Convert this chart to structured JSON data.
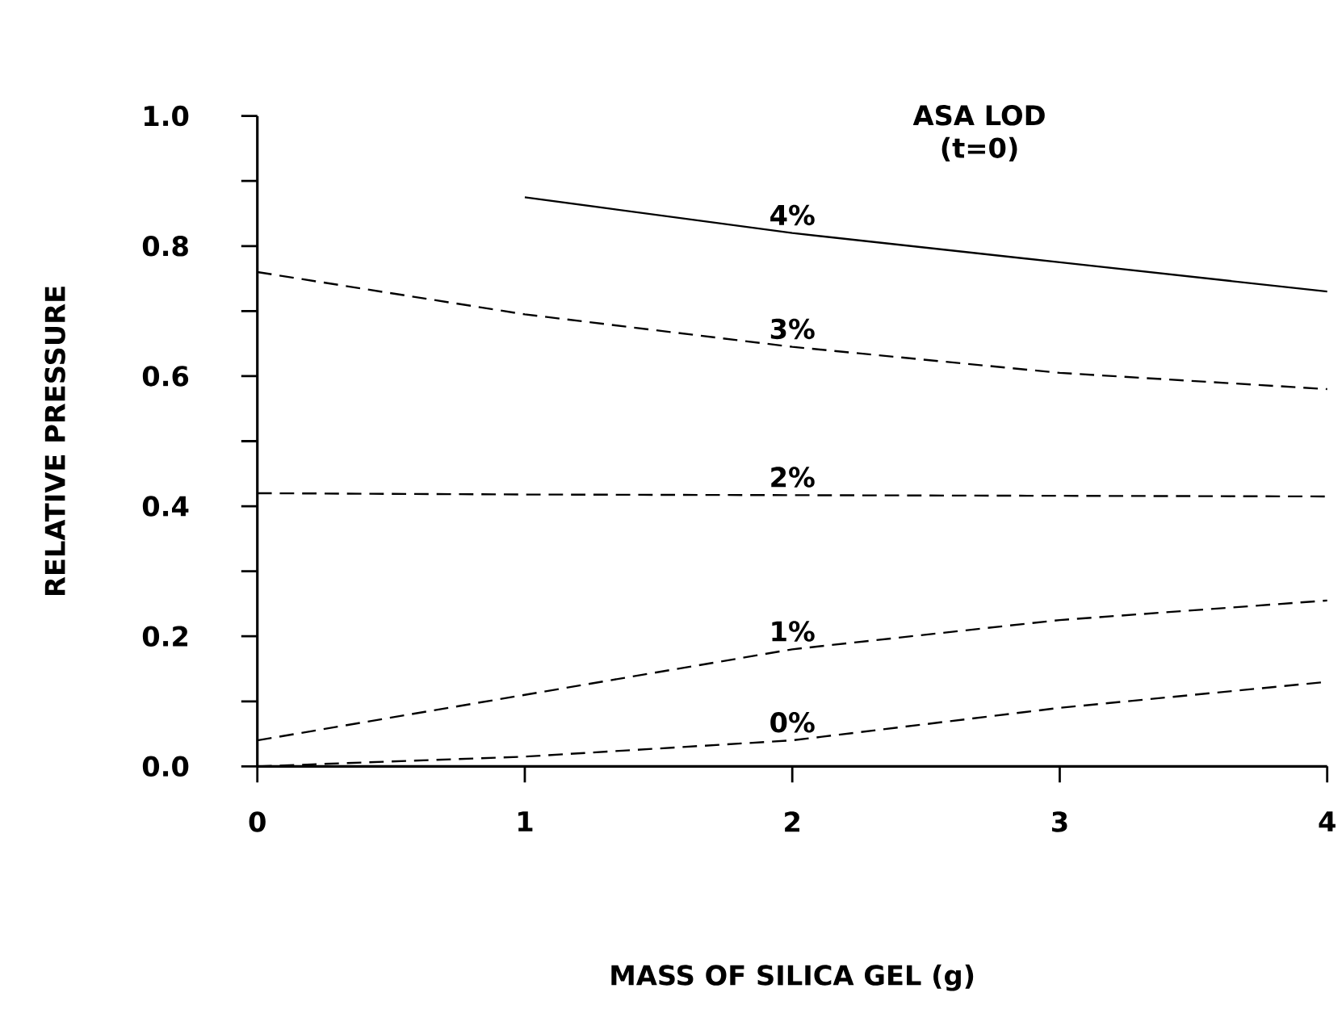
{
  "chart_data": {
    "type": "line",
    "xlabel": "MASS OF SILICA GEL (g)",
    "ylabel": "RELATIVE PRESSURE",
    "annotations": [
      "ASA LOD",
      "(t=0)"
    ],
    "xlim": [
      0,
      4
    ],
    "xticks": [
      0,
      1,
      2,
      3,
      4
    ],
    "ylim": [
      0,
      1.0
    ],
    "yticks": [
      {
        "value": 0,
        "label": "0.0"
      },
      {
        "value": 0.1,
        "label": null
      },
      {
        "value": 0.2,
        "label": "0.2"
      },
      {
        "value": 0.3,
        "label": null
      },
      {
        "value": 0.4,
        "label": "0.4"
      },
      {
        "value": 0.5,
        "label": null
      },
      {
        "value": 0.6,
        "label": "0.6"
      },
      {
        "value": 0.7,
        "label": null
      },
      {
        "value": 0.8,
        "label": "0.8"
      },
      {
        "value": 0.9,
        "label": null
      },
      {
        "value": 1.0,
        "label": "1.0"
      }
    ],
    "grid": false,
    "legend": false,
    "marker": "none",
    "series": [
      {
        "name": "4%",
        "color": "#000000",
        "line_style": "solid",
        "x": [
          1,
          2,
          3,
          4
        ],
        "values": [
          0.875,
          0.82,
          0.775,
          0.73
        ]
      },
      {
        "name": "3%",
        "color": "#000000",
        "line_style": "dashed",
        "x": [
          0,
          1,
          2,
          3,
          4
        ],
        "values": [
          0.76,
          0.695,
          0.645,
          0.605,
          0.58
        ]
      },
      {
        "name": "2%",
        "color": "#000000",
        "line_style": "dashed",
        "x": [
          0,
          1,
          2,
          3,
          4
        ],
        "values": [
          0.42,
          0.418,
          0.417,
          0.416,
          0.415
        ]
      },
      {
        "name": "1%",
        "color": "#000000",
        "line_style": "dashed",
        "x": [
          0,
          1,
          2,
          3,
          4
        ],
        "values": [
          0.04,
          0.11,
          0.18,
          0.225,
          0.255
        ]
      },
      {
        "name": "0%",
        "color": "#000000",
        "line_style": "dashed",
        "x": [
          0,
          1,
          2,
          3,
          4
        ],
        "values": [
          0.0,
          0.015,
          0.04,
          0.09,
          0.13
        ]
      }
    ]
  }
}
